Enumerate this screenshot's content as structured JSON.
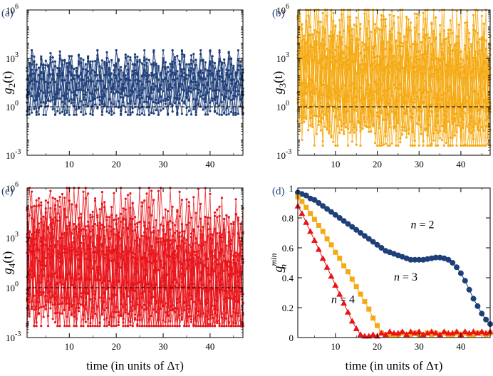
{
  "chart_data": [
    {
      "type": "scatter",
      "panel_label": "(a)",
      "ylabel_base": "g",
      "ylabel_sub": "2",
      "ylabel_arg": "(t)",
      "yscale": "log",
      "ylim_exp": [
        -3,
        6
      ],
      "yticks": [
        {
          "base": "10",
          "exp": "-3"
        },
        {
          "base": "10",
          "exp": "0"
        },
        {
          "base": "10",
          "exp": "3"
        },
        {
          "base": "10",
          "exp": "6"
        }
      ],
      "xlim": [
        1,
        47
      ],
      "xticks": [
        "10",
        "20",
        "30",
        "40"
      ],
      "reference_line": 1,
      "color": "#1f3f7a",
      "series_count": 10,
      "approx_range_exp": [
        -0.5,
        3.5
      ]
    },
    {
      "type": "scatter",
      "panel_label": "(b)",
      "ylabel_base": "g",
      "ylabel_sub": "3",
      "ylabel_arg": "(t)",
      "yscale": "log",
      "ylim_exp": [
        -3,
        6
      ],
      "yticks": [
        {
          "base": "10",
          "exp": "-3"
        },
        {
          "base": "10",
          "exp": "0"
        },
        {
          "base": "10",
          "exp": "3"
        },
        {
          "base": "10",
          "exp": "6"
        }
      ],
      "xlim": [
        1,
        47
      ],
      "xticks": [
        "10",
        "20",
        "30",
        "40"
      ],
      "reference_line": 1,
      "color": "#f5a912",
      "series_count": 14,
      "approx_range_exp": [
        -2.4,
        6
      ]
    },
    {
      "type": "scatter",
      "panel_label": "(c)",
      "ylabel_base": "g",
      "ylabel_sub": "4",
      "ylabel_arg": "(t)",
      "yscale": "log",
      "ylim_exp": [
        -3,
        6
      ],
      "yticks": [
        {
          "base": "10",
          "exp": "-3"
        },
        {
          "base": "10",
          "exp": "0"
        },
        {
          "base": "10",
          "exp": "3"
        },
        {
          "base": "10",
          "exp": "6"
        }
      ],
      "xlim": [
        1,
        47
      ],
      "xticks": [
        "10",
        "20",
        "30",
        "40"
      ],
      "xlabel": "time (in units of Δτ)",
      "reference_line": 1,
      "color": "#e8141a",
      "series_count": 16,
      "approx_range_exp": [
        -2.3,
        6
      ]
    },
    {
      "type": "line",
      "panel_label": "(d)",
      "ylabel_base": "g",
      "ylabel_sub": "n",
      "ylabel_sup": "min",
      "xlim": [
        1,
        47
      ],
      "ylim": [
        0,
        1
      ],
      "xticks": [
        "10",
        "20",
        "30",
        "40"
      ],
      "yticks": [
        "0",
        "0.2",
        "0.4",
        "0.6",
        "0.8",
        "1"
      ],
      "xlabel": "time (in units of Δτ)",
      "series": [
        {
          "name": "n = 2",
          "label_var": "n",
          "label_val": "= 2",
          "color": "#1f3f7a",
          "marker": "circle",
          "x": [
            1,
            2,
            3,
            4,
            5,
            6,
            7,
            8,
            9,
            10,
            11,
            12,
            13,
            14,
            15,
            16,
            17,
            18,
            19,
            20,
            21,
            22,
            23,
            24,
            25,
            26,
            27,
            28,
            29,
            30,
            31,
            32,
            33,
            34,
            35,
            36,
            37,
            38,
            39,
            40,
            41,
            42,
            43,
            44,
            45,
            46,
            47
          ],
          "y": [
            0.97,
            0.96,
            0.95,
            0.93,
            0.92,
            0.9,
            0.88,
            0.86,
            0.84,
            0.82,
            0.8,
            0.78,
            0.76,
            0.74,
            0.72,
            0.7,
            0.68,
            0.66,
            0.64,
            0.62,
            0.6,
            0.58,
            0.57,
            0.56,
            0.55,
            0.54,
            0.53,
            0.52,
            0.52,
            0.52,
            0.52,
            0.525,
            0.53,
            0.535,
            0.535,
            0.53,
            0.52,
            0.5,
            0.47,
            0.43,
            0.38,
            0.32,
            0.26,
            0.21,
            0.16,
            0.12,
            0.09
          ]
        },
        {
          "name": "n = 3",
          "label_var": "n",
          "label_val": "= 3",
          "color": "#f5a912",
          "marker": "square",
          "x": [
            1,
            2,
            3,
            4,
            5,
            6,
            7,
            8,
            9,
            10,
            11,
            12,
            13,
            14,
            15,
            16,
            17,
            18,
            19,
            20,
            21,
            22,
            23,
            24,
            25,
            26,
            27,
            28,
            29,
            30,
            31,
            32,
            33,
            34,
            35,
            36,
            37,
            38,
            39,
            40,
            41,
            42,
            43,
            44,
            45,
            46,
            47
          ],
          "y": [
            0.94,
            0.91,
            0.87,
            0.83,
            0.79,
            0.75,
            0.71,
            0.66,
            0.62,
            0.57,
            0.53,
            0.48,
            0.44,
            0.39,
            0.34,
            0.29,
            0.24,
            0.19,
            0.13,
            0.08,
            0.03,
            0.02,
            0.02,
            0.02,
            0.02,
            0.03,
            0.02,
            0.02,
            0.03,
            0.02,
            0.02,
            0.03,
            0.02,
            0.03,
            0.02,
            0.03,
            0.02,
            0.02,
            0.03,
            0.02,
            0.03,
            0.02,
            0.02,
            0.03,
            0.03,
            0.02,
            0.03
          ]
        },
        {
          "name": "n = 4",
          "label_var": "n",
          "label_val": "= 4",
          "color": "#e8141a",
          "marker": "triangle",
          "x": [
            1,
            2,
            3,
            4,
            5,
            6,
            7,
            8,
            9,
            10,
            11,
            12,
            13,
            14,
            15,
            16,
            17,
            18,
            19,
            20,
            21,
            22,
            23,
            24,
            25,
            26,
            27,
            28,
            29,
            30,
            31,
            32,
            33,
            34,
            35,
            36,
            37,
            38,
            39,
            40,
            41,
            42,
            43,
            44,
            45,
            46,
            47
          ],
          "y": [
            0.88,
            0.83,
            0.77,
            0.71,
            0.65,
            0.59,
            0.53,
            0.47,
            0.41,
            0.35,
            0.29,
            0.23,
            0.17,
            0.11,
            0.06,
            0.02,
            0.01,
            0.01,
            0.02,
            0.01,
            0.03,
            0.02,
            0.04,
            0.03,
            0.03,
            0.04,
            0.02,
            0.04,
            0.03,
            0.04,
            0.02,
            0.03,
            0.04,
            0.03,
            0.02,
            0.04,
            0.03,
            0.03,
            0.04,
            0.02,
            0.04,
            0.03,
            0.04,
            0.03,
            0.04,
            0.03,
            0.04
          ]
        }
      ]
    }
  ]
}
